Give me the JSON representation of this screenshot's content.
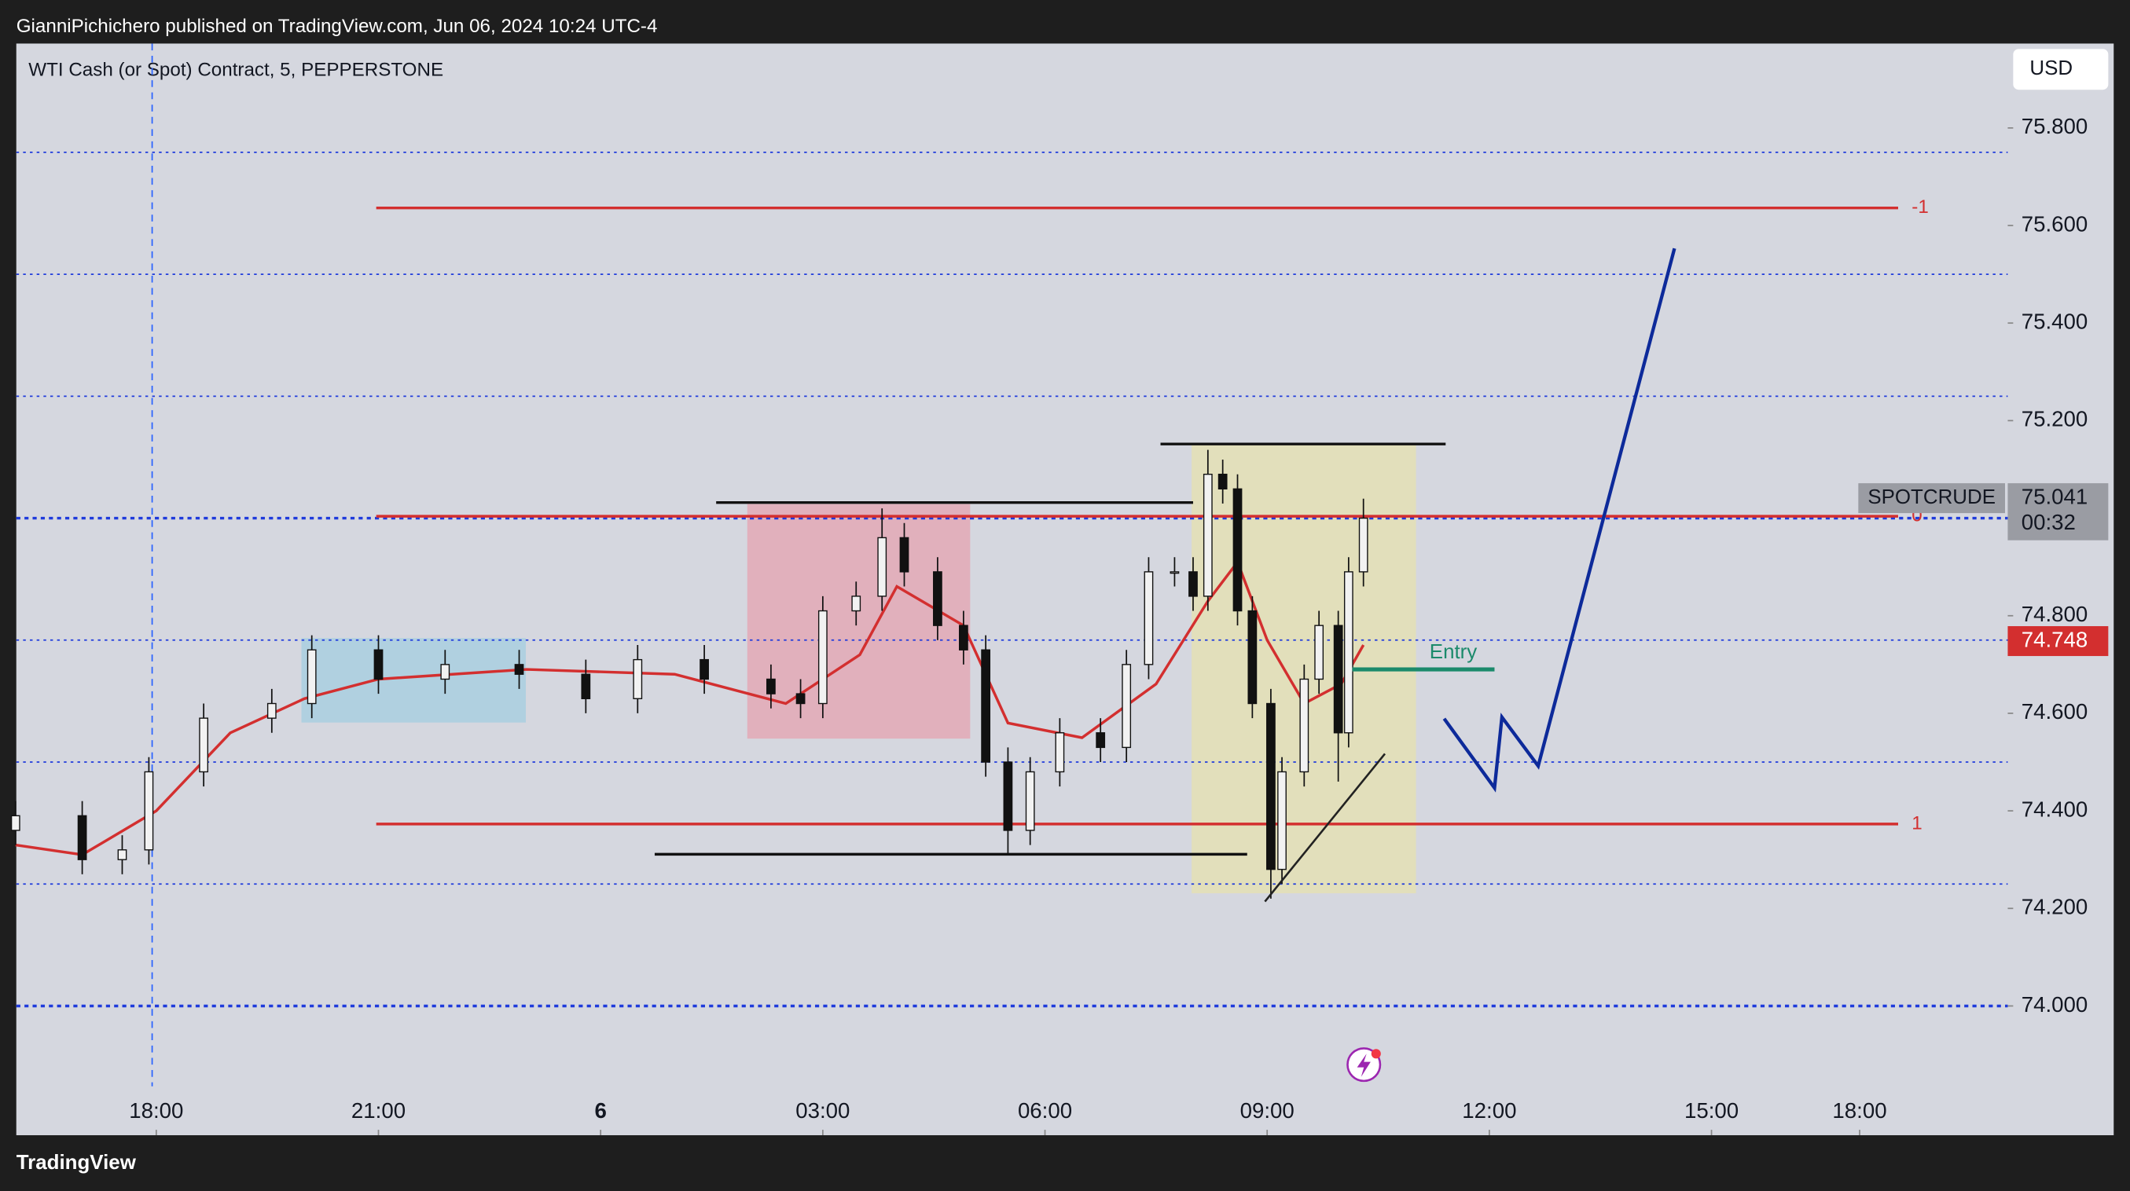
{
  "header": {
    "published": "GianniPichichero published on TradingView.com, Jun 06, 2024 10:24 UTC-4",
    "footer": "TradingView"
  },
  "chart_data": {
    "type": "candlestick",
    "title": "WTI Cash (or Spot) Contract, 5, PEPPERSTONE",
    "currency": "USD",
    "x": [
      -1.9,
      -1.0,
      -0.46,
      -0.1,
      0.64,
      1.56,
      2.1,
      3.0,
      3.9,
      4.9,
      5.8,
      6.5,
      7.4,
      8.3,
      8.7,
      9.0,
      9.45,
      9.8,
      10.1,
      10.55,
      10.9,
      11.2,
      11.5,
      11.8,
      12.2,
      12.75,
      13.1,
      13.4,
      13.75,
      14.0,
      14.2,
      14.4,
      14.6,
      14.8,
      15.05,
      15.2,
      15.5,
      15.7,
      15.96,
      16.1,
      16.3
    ],
    "open": [
      74.36,
      74.39,
      74.3,
      74.32,
      74.48,
      74.59,
      74.62,
      74.73,
      74.67,
      74.7,
      74.68,
      74.63,
      74.71,
      74.67,
      74.64,
      74.62,
      74.81,
      74.84,
      74.96,
      74.89,
      74.78,
      74.73,
      74.5,
      74.36,
      74.48,
      74.56,
      74.53,
      74.7,
      74.89,
      74.89,
      74.84,
      75.09,
      75.06,
      74.81,
      74.62,
      74.28,
      74.48,
      74.67,
      74.78,
      74.56,
      74.89
    ],
    "high": [
      74.42,
      74.42,
      74.35,
      74.51,
      74.62,
      74.65,
      74.76,
      74.76,
      74.73,
      74.73,
      74.71,
      74.74,
      74.74,
      74.7,
      74.67,
      74.84,
      74.87,
      75.02,
      74.99,
      74.92,
      74.81,
      74.76,
      74.53,
      74.51,
      74.59,
      74.59,
      74.73,
      74.92,
      74.92,
      74.92,
      75.14,
      75.12,
      75.09,
      74.84,
      74.65,
      74.51,
      74.7,
      74.81,
      74.81,
      74.92,
      75.04
    ],
    "low": [
      74.33,
      74.27,
      74.27,
      74.29,
      74.45,
      74.56,
      74.59,
      74.64,
      74.64,
      74.65,
      74.6,
      74.6,
      74.64,
      74.61,
      74.59,
      74.59,
      74.78,
      74.81,
      74.86,
      74.75,
      74.7,
      74.47,
      74.31,
      74.33,
      74.45,
      74.5,
      74.5,
      74.67,
      74.86,
      74.81,
      74.81,
      75.03,
      74.78,
      74.59,
      74.22,
      74.25,
      74.45,
      74.64,
      74.46,
      74.53,
      74.86
    ],
    "close": [
      74.39,
      74.3,
      74.32,
      74.48,
      74.59,
      74.62,
      74.73,
      74.67,
      74.7,
      74.68,
      74.63,
      74.71,
      74.67,
      74.64,
      74.62,
      74.81,
      74.84,
      74.96,
      74.89,
      74.78,
      74.73,
      74.5,
      74.36,
      74.48,
      74.56,
      74.53,
      74.7,
      74.89,
      74.89,
      74.84,
      75.09,
      75.06,
      74.81,
      74.62,
      74.28,
      74.48,
      74.67,
      74.78,
      74.56,
      74.89,
      75.0
    ],
    "up_color": "#f2f2f2",
    "down_color": "#111111",
    "ma_x": [
      -1.9,
      -1,
      0,
      1,
      2,
      3,
      5,
      7,
      8.5,
      9.5,
      10,
      10.9,
      11.5,
      12.5,
      13.5,
      14.2,
      14.6,
      15,
      15.5,
      16,
      16.3
    ],
    "ma": [
      74.33,
      74.31,
      74.4,
      74.56,
      74.63,
      74.67,
      74.69,
      74.68,
      74.62,
      74.72,
      74.86,
      74.78,
      74.58,
      74.55,
      74.66,
      74.83,
      74.91,
      74.75,
      74.62,
      74.66,
      74.74
    ],
    "ma_color": "#d32f2f",
    "xlim": [
      -1.89,
      25.0
    ],
    "xticks": [
      {
        "value": 0,
        "label": "18:00"
      },
      {
        "value": 3,
        "label": "21:00"
      },
      {
        "value": 6,
        "label": "6"
      },
      {
        "value": 9,
        "label": "03:00"
      },
      {
        "value": 12,
        "label": "06:00"
      },
      {
        "value": 15,
        "label": "09:00"
      },
      {
        "value": 18,
        "label": "12:00"
      },
      {
        "value": 21,
        "label": "15:00"
      },
      {
        "value": 23,
        "label": "18:00"
      }
    ],
    "ylim": [
      73.735,
      75.973
    ],
    "yticks": [
      {
        "value": 74.0,
        "label": "74.000"
      },
      {
        "value": 74.2,
        "label": "74.200"
      },
      {
        "value": 74.4,
        "label": "74.400"
      },
      {
        "value": 74.6,
        "label": "74.600"
      },
      {
        "value": 74.8,
        "label": "74.800"
      },
      {
        "value": 75.2,
        "label": "75.200"
      },
      {
        "value": 75.4,
        "label": "75.400"
      },
      {
        "value": 75.6,
        "label": "75.600"
      },
      {
        "value": 75.8,
        "label": "75.800"
      }
    ],
    "dotted_levels": [
      74.0,
      74.25,
      74.5,
      74.75,
      75.0,
      75.25,
      75.5,
      75.75
    ],
    "fib_levels": [
      {
        "label": "-1",
        "price": 75.636,
        "x0": 2.97,
        "x1": 23.52
      },
      {
        "label": "0",
        "price": 75.004,
        "x0": 2.97,
        "x1": 23.52
      },
      {
        "label": "1",
        "price": 74.373,
        "x0": 2.97,
        "x1": 23.52
      }
    ],
    "fib_color": "#d32f2f",
    "black_levels": [
      {
        "price": 75.032,
        "x0": 7.56,
        "x1": 14.0
      },
      {
        "price": 75.152,
        "x0": 13.56,
        "x1": 17.41
      },
      {
        "price": 74.311,
        "x0": 6.73,
        "x1": 14.73
      }
    ],
    "entry": {
      "label": "Entry",
      "price": 74.69,
      "x0": 16.15,
      "x1": 18.07,
      "color": "#1b8a6b"
    },
    "boxes": [
      {
        "x0": 1.96,
        "x1": 4.99,
        "y0": 74.581,
        "y1": 74.754,
        "color": "#a9cfe0"
      },
      {
        "x0": 7.98,
        "x1": 10.99,
        "y0": 74.548,
        "y1": 75.029,
        "color": "#e3a9b6"
      },
      {
        "x0": 13.98,
        "x1": 17.01,
        "y0": 74.231,
        "y1": 75.152,
        "color": "#e4e1b5"
      }
    ],
    "projection_x": [
      17.39,
      18.07,
      18.17,
      18.66,
      20.5
    ],
    "projection": [
      74.589,
      74.447,
      74.592,
      74.492,
      75.553
    ],
    "projection_color": "#0d2a9a",
    "trend_x": [
      14.97,
      16.59
    ],
    "trend": [
      74.214,
      74.517
    ],
    "symbol": "SPOTCRUDE",
    "last_price": 75.041,
    "countdown": "00:32",
    "marker_price": 74.748
  }
}
